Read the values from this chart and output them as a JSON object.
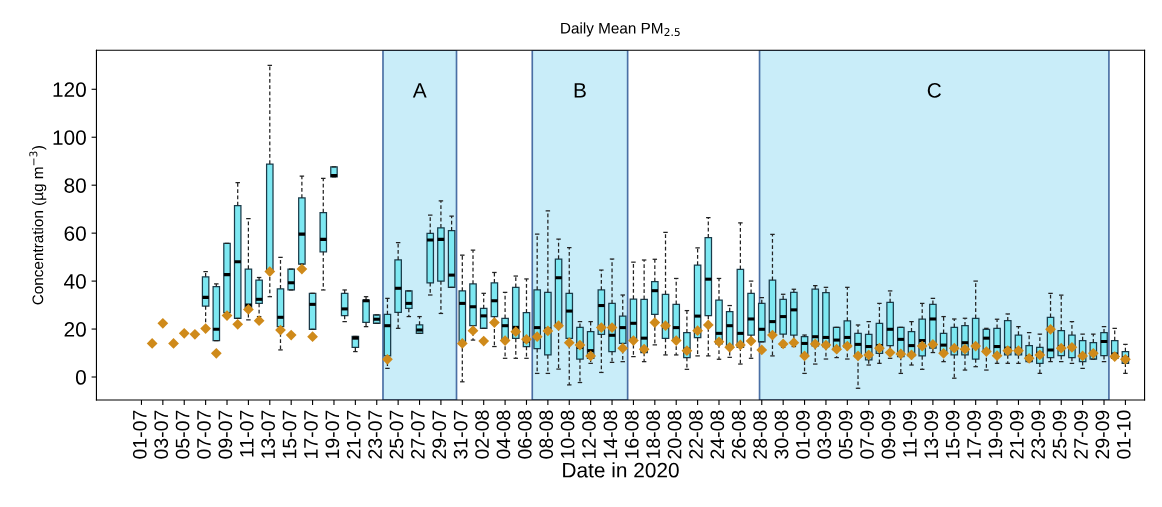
{
  "chart_data": {
    "type": "box",
    "title": "Daily Mean PM$_{2.5}$",
    "xlabel": "Date in 2020",
    "ylabel": "Concentration (µg m$^{−3}$)",
    "x": [
      "2020-07-02",
      "2020-07-03",
      "2020-07-04",
      "2020-07-05",
      "2020-07-06",
      "2020-07-07",
      "2020-07-08",
      "2020-07-09",
      "2020-07-10",
      "2020-07-11",
      "2020-07-12",
      "2020-07-13",
      "2020-07-14",
      "2020-07-15",
      "2020-07-16",
      "2020-07-17",
      "2020-07-18",
      "2020-07-19",
      "2020-07-20",
      "2020-07-21",
      "2020-07-22",
      "2020-07-23",
      "2020-07-24",
      "2020-07-25",
      "2020-07-26",
      "2020-07-27",
      "2020-07-28",
      "2020-07-29",
      "2020-07-30",
      "2020-07-31",
      "2020-08-01",
      "2020-08-02",
      "2020-08-03",
      "2020-08-04",
      "2020-08-05",
      "2020-08-06",
      "2020-08-07",
      "2020-08-08",
      "2020-08-09",
      "2020-08-10",
      "2020-08-11",
      "2020-08-12",
      "2020-08-13",
      "2020-08-14",
      "2020-08-15",
      "2020-08-16",
      "2020-08-17",
      "2020-08-18",
      "2020-08-19",
      "2020-08-20",
      "2020-08-21",
      "2020-08-22",
      "2020-08-23",
      "2020-08-24",
      "2020-08-25",
      "2020-08-26",
      "2020-08-27",
      "2020-08-28",
      "2020-08-29",
      "2020-08-30",
      "2020-08-31",
      "2020-09-01",
      "2020-09-02",
      "2020-09-03",
      "2020-09-04",
      "2020-09-05",
      "2020-09-06",
      "2020-09-07",
      "2020-09-08",
      "2020-09-09",
      "2020-09-10",
      "2020-09-11",
      "2020-09-12",
      "2020-09-13",
      "2020-09-14",
      "2020-09-15",
      "2020-09-16",
      "2020-09-17",
      "2020-09-18",
      "2020-09-19",
      "2020-09-20",
      "2020-09-21",
      "2020-09-22",
      "2020-09-23",
      "2020-09-24",
      "2020-09-25",
      "2020-09-26",
      "2020-09-27",
      "2020-09-28",
      "2020-09-29",
      "2020-09-30",
      "2020-10-01"
    ],
    "series": [
      {
        "color": "#7de8f2",
        "boxes": [
          null,
          null,
          null,
          null,
          null,
          {
            "low": 21,
            "q1": 29.6,
            "median": 33.2,
            "q3": 41.8,
            "high": 43.9
          },
          {
            "low": 15.2,
            "q1": 15.2,
            "median": 19.9,
            "q3": 37.7,
            "high": 38.8
          },
          {
            "low": 26.8,
            "q1": 26.8,
            "median": 42.7,
            "q3": 55.7,
            "high": 55.7
          },
          {
            "low": 24.5,
            "q1": 24.5,
            "median": 48.1,
            "q3": 71.5,
            "high": 81.1
          },
          {
            "low": 23.8,
            "q1": 29,
            "median": 30,
            "q3": 45,
            "high": 66.1
          },
          {
            "low": 25.2,
            "q1": 30.7,
            "median": 32.4,
            "q3": 40.4,
            "high": 41.5
          },
          {
            "low": 33.5,
            "q1": 44.3,
            "median": 44.3,
            "q3": 88.8,
            "high": 130
          },
          {
            "low": 11.3,
            "q1": 21,
            "median": 24.9,
            "q3": 36.8,
            "high": 49.9
          },
          {
            "low": 36.3,
            "q1": 36.3,
            "median": 39.3,
            "q3": 45,
            "high": 45
          },
          {
            "low": 47.1,
            "q1": 47.1,
            "median": 59.6,
            "q3": 74.7,
            "high": 83.8
          },
          {
            "low": 19.9,
            "q1": 19.9,
            "median": 30.3,
            "q3": 34.9,
            "high": 34.9
          },
          {
            "low": 36.3,
            "q1": 52.2,
            "median": 57.4,
            "q3": 68.6,
            "high": 82.8
          },
          {
            "low": 83.5,
            "q1": 83.5,
            "median": 84,
            "q3": 87.6,
            "high": 87.6
          },
          {
            "low": 23.1,
            "q1": 25.6,
            "median": 28.4,
            "q3": 34.9,
            "high": 36.3
          },
          {
            "low": 10.6,
            "q1": 12.4,
            "median": 16.2,
            "q3": 16.9,
            "high": 16.9
          },
          {
            "low": 21,
            "q1": 22.8,
            "median": 31.8,
            "q3": 32.1,
            "high": 33.5
          },
          {
            "low": 22.4,
            "q1": 22.4,
            "median": 24.1,
            "q3": 25.9,
            "high": 25.9
          },
          {
            "low": 3.6,
            "q1": 8.8,
            "median": 21.4,
            "q3": 26.1,
            "high": 32.8
          },
          {
            "low": 20.3,
            "q1": 27,
            "median": 37,
            "q3": 48.8,
            "high": 56
          },
          {
            "low": 25.2,
            "q1": 28.6,
            "median": 30.7,
            "q3": 35.9,
            "high": 35.9
          },
          {
            "low": 18.2,
            "q1": 18.2,
            "median": 19.6,
            "q3": 21.7,
            "high": 25.2
          },
          {
            "low": 34.2,
            "q1": 39.3,
            "median": 57.1,
            "q3": 59.9,
            "high": 67.5
          },
          {
            "low": 26.5,
            "q1": 40,
            "median": 57.4,
            "q3": 62.2,
            "high": 73.5
          },
          {
            "low": 37.4,
            "q1": 37.4,
            "median": 42.5,
            "q3": 61,
            "high": 67.1
          },
          {
            "low": -2,
            "q1": 14.7,
            "median": 30.7,
            "q3": 35.9,
            "high": 50.8
          },
          {
            "low": 15.4,
            "q1": 21.4,
            "median": 29.3,
            "q3": 38.8,
            "high": 52.9
          },
          {
            "low": 20.3,
            "q1": 20.3,
            "median": 25.5,
            "q3": 28.6,
            "high": 34.9
          },
          {
            "low": 12.7,
            "q1": 25.2,
            "median": 31.8,
            "q3": 39.3,
            "high": 43.6
          },
          {
            "low": 7.8,
            "q1": 15.4,
            "median": 21.4,
            "q3": 24.5,
            "high": 35.3
          },
          {
            "low": 7.8,
            "q1": 16.1,
            "median": 20.7,
            "q3": 37.4,
            "high": 42.1
          },
          {
            "low": 7.8,
            "q1": 12.7,
            "median": 15,
            "q3": 26.8,
            "high": 40.9
          },
          {
            "low": 1.5,
            "q1": 11.8,
            "median": 20.6,
            "q3": 36.3,
            "high": 59.6
          },
          {
            "low": 1.5,
            "q1": 9.2,
            "median": 20,
            "q3": 35.3,
            "high": 69.3
          },
          {
            "low": 3.3,
            "q1": 21,
            "median": 41.4,
            "q3": 49.2,
            "high": 57.5
          },
          {
            "low": -3.3,
            "q1": 16.1,
            "median": 27.5,
            "q3": 34.9,
            "high": 54
          },
          {
            "low": -2.3,
            "q1": 7.5,
            "median": 12.4,
            "q3": 20.7,
            "high": 23.1
          },
          {
            "low": 5.7,
            "q1": 7.8,
            "median": 11,
            "q3": 18.9,
            "high": 23.1
          },
          {
            "low": 1.9,
            "q1": 17.8,
            "median": 29.8,
            "q3": 36.3,
            "high": 44.6
          },
          {
            "low": 6.1,
            "q1": 10.6,
            "median": 17.4,
            "q3": 30.7,
            "high": 49.2
          },
          {
            "low": 6.4,
            "q1": 14,
            "median": 20.6,
            "q3": 25.4,
            "high": 34.2
          },
          {
            "low": 8.5,
            "q1": 16.1,
            "median": 22.4,
            "q3": 32.5,
            "high": 47.9
          },
          {
            "low": 6.4,
            "q1": 10.2,
            "median": 16.2,
            "q3": 32.4,
            "high": 48.8
          },
          {
            "low": 13.4,
            "q1": 26.1,
            "median": 36,
            "q3": 39.8,
            "high": 49.1
          },
          {
            "low": 9.2,
            "q1": 16.1,
            "median": 21,
            "q3": 34.5,
            "high": 60.3
          },
          {
            "low": 9.2,
            "q1": 15.4,
            "median": 20.6,
            "q3": 30.3,
            "high": 41.1
          },
          {
            "low": 3.2,
            "q1": 8.1,
            "median": 11.6,
            "q3": 18.5,
            "high": 27.7
          },
          {
            "low": 8.8,
            "q1": 16.4,
            "median": 25.4,
            "q3": 46.7,
            "high": 53.9
          },
          {
            "low": 8.8,
            "q1": 25.6,
            "median": 40.8,
            "q3": 58.1,
            "high": 66.5
          },
          {
            "low": 7.4,
            "q1": 13.8,
            "median": 18.2,
            "q3": 32.1,
            "high": 41.1
          },
          {
            "low": 8.2,
            "q1": 13.1,
            "median": 21.4,
            "q3": 27.3,
            "high": 29.8
          },
          {
            "low": 5.4,
            "q1": 12.4,
            "median": 18.2,
            "q3": 44.9,
            "high": 64.3
          },
          {
            "low": 7.8,
            "q1": 17.5,
            "median": 24.2,
            "q3": 34.9,
            "high": 40
          },
          {
            "low": 14.7,
            "q1": 14.7,
            "median": 19.9,
            "q3": 30.7,
            "high": 33.1
          },
          {
            "low": 8.8,
            "q1": 18.5,
            "median": 23.1,
            "q3": 40.4,
            "high": 59.5
          },
          {
            "low": 12.4,
            "q1": 17.9,
            "median": 25.2,
            "q3": 32.4,
            "high": 34.5
          },
          {
            "low": 12.7,
            "q1": 17.5,
            "median": 28,
            "q3": 35.3,
            "high": 36.6
          },
          {
            "low": 1.5,
            "q1": 9.2,
            "median": 14,
            "q3": 16.8,
            "high": 17.5
          },
          {
            "low": 5.4,
            "q1": 13,
            "median": 16.8,
            "q3": 36.6,
            "high": 38.1
          },
          {
            "low": 7.5,
            "q1": 12.7,
            "median": 16.5,
            "q3": 35.2,
            "high": 37.4
          },
          {
            "low": 8.1,
            "q1": 11.3,
            "median": 15.4,
            "q3": 20.7,
            "high": 20.7
          },
          {
            "low": 7.5,
            "q1": 12.4,
            "median": 16.5,
            "q3": 23.4,
            "high": 37.4
          },
          {
            "low": -4.7,
            "q1": 8.5,
            "median": 13.6,
            "q3": 18.2,
            "high": 21.7
          },
          {
            "low": 5,
            "q1": 7.1,
            "median": 12.7,
            "q3": 17.8,
            "high": 23.1
          },
          {
            "low": 5.7,
            "q1": 9.9,
            "median": 13.1,
            "q3": 22.4,
            "high": 30.7
          },
          {
            "low": 7.8,
            "q1": 13.1,
            "median": 19.9,
            "q3": 31.1,
            "high": 35.9
          },
          {
            "low": 1.5,
            "q1": 8.5,
            "median": 15.7,
            "q3": 20.7,
            "high": 20.7
          },
          {
            "low": 5,
            "q1": 8.8,
            "median": 13.1,
            "q3": 18.9,
            "high": 23.1
          },
          {
            "low": 3.2,
            "q1": 8.8,
            "median": 15.2,
            "q3": 24.1,
            "high": 30.7
          },
          {
            "low": 10.2,
            "q1": 12,
            "median": 24.2,
            "q3": 30.3,
            "high": 32.8
          },
          {
            "low": 6.4,
            "q1": 9.9,
            "median": 13.3,
            "q3": 18.2,
            "high": 25.2
          },
          {
            "low": -0.5,
            "q1": 9.2,
            "median": 12,
            "q3": 20.7,
            "high": 24.2
          },
          {
            "low": 2.9,
            "q1": 9.2,
            "median": 14.3,
            "q3": 21.4,
            "high": 24.5
          },
          {
            "low": 4.3,
            "q1": 7.5,
            "median": 13,
            "q3": 24.5,
            "high": 40
          },
          {
            "low": 2.9,
            "q1": 10.6,
            "median": 16.2,
            "q3": 19.9,
            "high": 20.3
          },
          {
            "low": 5.7,
            "q1": 9.6,
            "median": 12.7,
            "q3": 20.3,
            "high": 24.1
          },
          {
            "low": 5.7,
            "q1": 9.2,
            "median": 12,
            "q3": 23.5,
            "high": 26.3
          },
          {
            "low": 5.7,
            "q1": 9.2,
            "median": 11.6,
            "q3": 17.5,
            "high": 21
          },
          {
            "low": 6.4,
            "q1": 6.4,
            "median": 8.5,
            "q3": 13.1,
            "high": 18.5
          },
          {
            "low": 1.5,
            "q1": 5.7,
            "median": 9.9,
            "q3": 12.4,
            "high": 17.9
          },
          {
            "low": 6.4,
            "q1": 8.1,
            "median": 11.3,
            "q3": 24.9,
            "high": 34.9
          },
          {
            "low": 6.4,
            "q1": 8.9,
            "median": 12.7,
            "q3": 19.3,
            "high": 34.2
          },
          {
            "low": 5.7,
            "q1": 8.1,
            "median": 12.7,
            "q3": 17.5,
            "high": 23.1
          },
          {
            "low": 3.6,
            "q1": 6.4,
            "median": 9.2,
            "q3": 15.2,
            "high": 17.9
          },
          {
            "low": 7.5,
            "q1": 7.5,
            "median": 9.9,
            "q3": 14.3,
            "high": 17.9
          },
          {
            "low": 6.4,
            "q1": 8.9,
            "median": 14.8,
            "q3": 18.5,
            "high": 21
          },
          {
            "low": 7.8,
            "q1": 7.8,
            "median": 9.6,
            "q3": 15.2,
            "high": 20.3
          },
          {
            "low": 1.5,
            "q1": 5.7,
            "median": 8,
            "q3": 10.6,
            "high": 13.6
          }
        ]
      },
      {
        "type": "scatter",
        "color": "#cf8a1a",
        "marker": "diamond",
        "values": [
          14.0,
          22.4,
          14.0,
          18.2,
          17.8,
          20.2,
          9.9,
          25.6,
          22.0,
          28.2,
          23.5,
          44.0,
          19.6,
          17.5,
          45.0,
          16.8,
          null,
          null,
          null,
          null,
          null,
          null,
          7.4,
          null,
          null,
          null,
          null,
          null,
          null,
          14.0,
          19.3,
          15.0,
          22.7,
          15.2,
          18.9,
          15.7,
          16.8,
          19.2,
          21.4,
          14.3,
          13.3,
          8.8,
          20.6,
          20.6,
          12.0,
          15.2,
          11.6,
          22.7,
          21.4,
          15.2,
          11.0,
          19.3,
          21.7,
          14.7,
          12.4,
          13.4,
          15.0,
          11.3,
          17.5,
          13.8,
          14.3,
          8.8,
          13.8,
          13.3,
          11.6,
          12.9,
          8.8,
          9.2,
          12.0,
          10.2,
          9.6,
          9.2,
          12.9,
          13.6,
          9.9,
          12.0,
          11.6,
          12.9,
          10.6,
          8.9,
          11.0,
          11.0,
          7.8,
          9.2,
          19.9,
          12.0,
          12.4,
          8.8,
          9.9,
          null,
          8.5,
          7.4
        ]
      }
    ],
    "bands": [
      {
        "axis": "x",
        "from": "2020-07-23T14:00",
        "to": "2020-07-30T11:00",
        "label": "A",
        "color": "#c9edf9"
      },
      {
        "axis": "x",
        "from": "2020-08-06T13:00",
        "to": "2020-08-15T11:00",
        "label": "B",
        "color": "#c9edf9"
      },
      {
        "axis": "x",
        "from": "2020-08-27T19:00",
        "to": "2020-09-29T11:00",
        "label": "C",
        "color": "#c9edf9"
      }
    ],
    "xlim": [
      "2020-06-26T19:00",
      "2020-10-02T19:00"
    ],
    "xticks": [
      {
        "value": "2020-07-01",
        "label": "01-07"
      },
      {
        "value": "2020-07-03",
        "label": "03-07"
      },
      {
        "value": "2020-07-05",
        "label": "05-07"
      },
      {
        "value": "2020-07-07",
        "label": "07-07"
      },
      {
        "value": "2020-07-09",
        "label": "09-07"
      },
      {
        "value": "2020-07-11",
        "label": "11-07"
      },
      {
        "value": "2020-07-13",
        "label": "13-07"
      },
      {
        "value": "2020-07-15",
        "label": "15-07"
      },
      {
        "value": "2020-07-17",
        "label": "17-07"
      },
      {
        "value": "2020-07-19",
        "label": "19-07"
      },
      {
        "value": "2020-07-21",
        "label": "21-07"
      },
      {
        "value": "2020-07-23",
        "label": "23-07"
      },
      {
        "value": "2020-07-25",
        "label": "25-07"
      },
      {
        "value": "2020-07-27",
        "label": "27-07"
      },
      {
        "value": "2020-07-29",
        "label": "29-07"
      },
      {
        "value": "2020-07-31",
        "label": "31-07"
      },
      {
        "value": "2020-08-02",
        "label": "02-08"
      },
      {
        "value": "2020-08-04",
        "label": "04-08"
      },
      {
        "value": "2020-08-06",
        "label": "06-08"
      },
      {
        "value": "2020-08-08",
        "label": "08-08"
      },
      {
        "value": "2020-08-10",
        "label": "10-08"
      },
      {
        "value": "2020-08-12",
        "label": "12-08"
      },
      {
        "value": "2020-08-14",
        "label": "14-08"
      },
      {
        "value": "2020-08-16",
        "label": "16-08"
      },
      {
        "value": "2020-08-18",
        "label": "18-08"
      },
      {
        "value": "2020-08-20",
        "label": "20-08"
      },
      {
        "value": "2020-08-22",
        "label": "22-08"
      },
      {
        "value": "2020-08-24",
        "label": "24-08"
      },
      {
        "value": "2020-08-26",
        "label": "26-08"
      },
      {
        "value": "2020-08-28",
        "label": "28-08"
      },
      {
        "value": "2020-08-30",
        "label": "30-08"
      },
      {
        "value": "2020-09-01",
        "label": "01-09"
      },
      {
        "value": "2020-09-03",
        "label": "03-09"
      },
      {
        "value": "2020-09-05",
        "label": "05-09"
      },
      {
        "value": "2020-09-07",
        "label": "07-09"
      },
      {
        "value": "2020-09-09",
        "label": "09-09"
      },
      {
        "value": "2020-09-11",
        "label": "11-09"
      },
      {
        "value": "2020-09-13",
        "label": "13-09"
      },
      {
        "value": "2020-09-15",
        "label": "15-09"
      },
      {
        "value": "2020-09-17",
        "label": "17-09"
      },
      {
        "value": "2020-09-19",
        "label": "19-09"
      },
      {
        "value": "2020-09-21",
        "label": "21-09"
      },
      {
        "value": "2020-09-23",
        "label": "23-09"
      },
      {
        "value": "2020-09-25",
        "label": "25-09"
      },
      {
        "value": "2020-09-27",
        "label": "27-09"
      },
      {
        "value": "2020-09-29",
        "label": "29-09"
      },
      {
        "value": "2020-10-01",
        "label": "01-10"
      }
    ],
    "ylim": [
      -9.6,
      136.3
    ],
    "yticks": [
      0,
      20,
      40,
      60,
      80,
      100,
      120
    ],
    "grid": false
  }
}
